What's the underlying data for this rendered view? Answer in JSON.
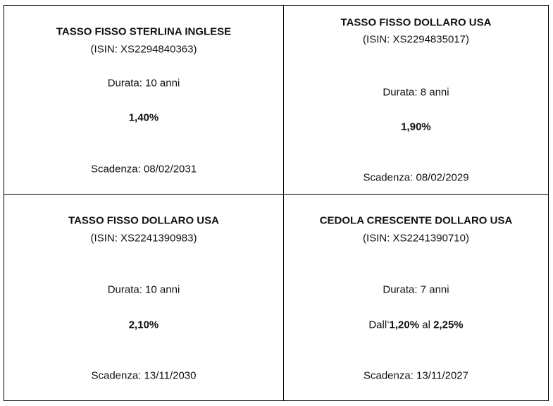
{
  "table": {
    "cells": [
      {
        "title": "TASSO FISSO STERLINA INGLESE",
        "isin": "(ISIN: XS2294840363)",
        "duration": "Durata: 10 anni",
        "rate": [
          {
            "text": "1,40%",
            "bold": true
          }
        ],
        "maturity": "Scadenza: 08/02/2031"
      },
      {
        "title": "TASSO FISSO DOLLARO USA",
        "isin": "(ISIN: XS2294835017)",
        "duration": "Durata: 8 anni",
        "rate": [
          {
            "text": "1,90%",
            "bold": true
          }
        ],
        "maturity": "Scadenza: 08/02/2029"
      },
      {
        "title": "TASSO FISSO DOLLARO USA",
        "isin": "(ISIN: XS2241390983)",
        "duration": "Durata: 10 anni",
        "rate": [
          {
            "text": "2,10%",
            "bold": true
          }
        ],
        "maturity": "Scadenza: 13/11/2030"
      },
      {
        "title": "CEDOLA CRESCENTE DOLLARO USA",
        "isin": "(ISIN: XS2241390710)",
        "duration": "Durata: 7 anni",
        "rate": [
          {
            "text": "Dall’",
            "bold": false
          },
          {
            "text": "1,20%",
            "bold": true
          },
          {
            "text": " al ",
            "bold": false
          },
          {
            "text": "2,25%",
            "bold": true
          }
        ],
        "maturity": "Scadenza: 13/11/2027"
      }
    ]
  }
}
